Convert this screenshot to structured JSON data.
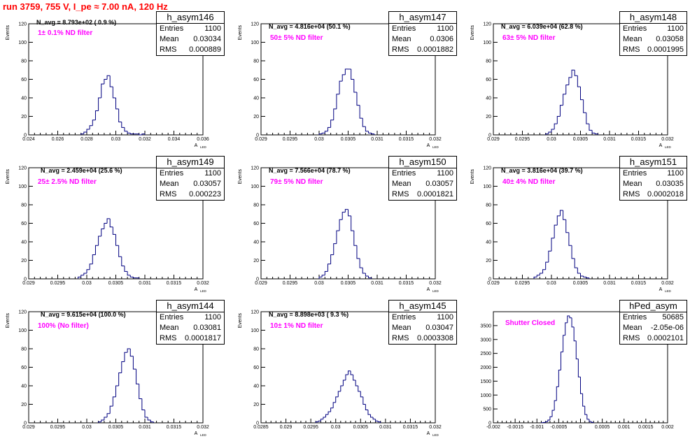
{
  "run_title": "run 3759,   755 V, I_pe ≈ 7.00 nA, 120 Hz",
  "chart_data": [
    {
      "type": "histogram",
      "name": "h_asym146",
      "stats": {
        "entries": "1100",
        "mean": "0.03034",
        "rms": "0.000889"
      },
      "navg": "N_avg = 8.793e+02 ( 0.9 %)",
      "filter": "1± 0.1% ND filter",
      "xlabel": "A",
      "xlabel_sub": "LED",
      "ylabel": "Events",
      "xlim": [
        0.024,
        0.036
      ],
      "ylim": [
        0,
        120
      ],
      "xticks": [
        "0.024",
        "0.026",
        "0.028",
        "0.03",
        "0.032",
        "0.034",
        "0.036"
      ],
      "yticks": [
        "0",
        "20",
        "40",
        "60",
        "80",
        "100",
        "120"
      ],
      "bin_start": 0.0276,
      "bin_width": 0.0002,
      "counts": [
        1,
        3,
        6,
        10,
        16,
        26,
        40,
        55,
        60,
        64,
        52,
        40,
        28,
        14,
        8,
        4,
        2,
        1,
        1,
        1,
        0,
        1
      ]
    },
    {
      "type": "histogram",
      "name": "h_asym147",
      "stats": {
        "entries": "1100",
        "mean": "0.0306",
        "rms": "0.0001882"
      },
      "navg": "N_avg = 4.816e+04 (50.1 %)",
      "filter": "50± 5% ND filter",
      "xlabel": "A",
      "xlabel_sub": "LED",
      "ylabel": "Events",
      "xlim": [
        0.029,
        0.032
      ],
      "ylim": [
        0,
        120
      ],
      "xticks": [
        "0.029",
        "0.0295",
        "0.03",
        "0.0305",
        "0.031",
        "0.0315",
        "0.032"
      ],
      "yticks": [
        "0",
        "20",
        "40",
        "60",
        "80",
        "100",
        "120"
      ],
      "bin_start": 0.03,
      "bin_width": 5e-05,
      "counts": [
        1,
        2,
        4,
        8,
        16,
        28,
        44,
        58,
        65,
        71,
        71,
        60,
        46,
        32,
        18,
        9,
        4,
        2,
        1
      ]
    },
    {
      "type": "histogram",
      "name": "h_asym148",
      "stats": {
        "entries": "1100",
        "mean": "0.03058",
        "rms": "0.0001995"
      },
      "navg": "N_avg = 6.039e+04 (62.8 %)",
      "filter": "63± 5% ND filter",
      "xlabel": "A",
      "xlabel_sub": "LED",
      "ylabel": "Events",
      "xlim": [
        0.029,
        0.032
      ],
      "ylim": [
        0,
        120
      ],
      "xticks": [
        "0.029",
        "0.0295",
        "0.03",
        "0.0305",
        "0.031",
        "0.0315",
        "0.032"
      ],
      "yticks": [
        "0",
        "20",
        "40",
        "60",
        "80",
        "100",
        "120"
      ],
      "bin_start": 0.0299,
      "bin_width": 5e-05,
      "counts": [
        1,
        3,
        6,
        12,
        20,
        32,
        44,
        54,
        62,
        70,
        64,
        52,
        38,
        24,
        12,
        5,
        2,
        1
      ]
    },
    {
      "type": "histogram",
      "name": "h_asym149",
      "stats": {
        "entries": "1100",
        "mean": "0.03057",
        "rms": "0.000223"
      },
      "navg": "N_avg = 2.459e+04 (25.6 %)",
      "filter": "25± 2.5% ND filter",
      "xlabel": "A",
      "xlabel_sub": "LED",
      "ylabel": "Events",
      "xlim": [
        0.029,
        0.032
      ],
      "ylim": [
        0,
        120
      ],
      "xticks": [
        "0.029",
        "0.0295",
        "0.03",
        "0.0305",
        "0.031",
        "0.0315",
        "0.032"
      ],
      "yticks": [
        "0",
        "20",
        "40",
        "60",
        "80",
        "100",
        "120"
      ],
      "bin_start": 0.02985,
      "bin_width": 5e-05,
      "counts": [
        2,
        4,
        6,
        10,
        16,
        26,
        36,
        46,
        54,
        60,
        65,
        56,
        48,
        36,
        24,
        14,
        8,
        4,
        2,
        1,
        1
      ]
    },
    {
      "type": "histogram",
      "name": "h_asym150",
      "stats": {
        "entries": "1100",
        "mean": "0.03057",
        "rms": "0.0001821"
      },
      "navg": "N_avg = 7.566e+04 (78.7 %)",
      "filter": "79± 5% ND filter",
      "xlabel": "A",
      "xlabel_sub": "LED",
      "ylabel": "Events",
      "xlim": [
        0.029,
        0.032
      ],
      "ylim": [
        0,
        120
      ],
      "xticks": [
        "0.029",
        "0.0295",
        "0.03",
        "0.0305",
        "0.031",
        "0.0315",
        "0.032"
      ],
      "yticks": [
        "0",
        "20",
        "40",
        "60",
        "80",
        "100",
        "120"
      ],
      "bin_start": 0.03,
      "bin_width": 5e-05,
      "counts": [
        2,
        4,
        8,
        16,
        26,
        38,
        52,
        64,
        72,
        75,
        68,
        52,
        36,
        22,
        12,
        6,
        3,
        1
      ]
    },
    {
      "type": "histogram",
      "name": "h_asym151",
      "stats": {
        "entries": "1100",
        "mean": "0.03035",
        "rms": "0.0002018"
      },
      "navg": "N_avg = 3.816e+04 (39.7 %)",
      "filter": "40± 4% ND filter",
      "xlabel": "A",
      "xlabel_sub": "LED",
      "ylabel": "Events",
      "xlim": [
        0.029,
        0.032
      ],
      "ylim": [
        0,
        120
      ],
      "xticks": [
        "0.029",
        "0.0295",
        "0.03",
        "0.0305",
        "0.031",
        "0.0315",
        "0.032"
      ],
      "yticks": [
        "0",
        "20",
        "40",
        "60",
        "80",
        "100",
        "120"
      ],
      "bin_start": 0.0297,
      "bin_width": 5e-05,
      "counts": [
        2,
        4,
        6,
        10,
        18,
        30,
        44,
        58,
        68,
        74,
        64,
        50,
        36,
        22,
        12,
        6,
        3,
        2,
        1
      ]
    },
    {
      "type": "histogram",
      "name": "h_asym144",
      "stats": {
        "entries": "1100",
        "mean": "0.03081",
        "rms": "0.0001817"
      },
      "navg": "N_avg = 9.615e+04 (100.0 %)",
      "filter": "100% (No filter)",
      "xlabel": "A",
      "xlabel_sub": "LED",
      "ylabel": "Events",
      "xlim": [
        0.029,
        0.032
      ],
      "ylim": [
        0,
        120
      ],
      "xticks": [
        "0.029",
        "0.0295",
        "0.03",
        "0.0305",
        "0.031",
        "0.0315",
        "0.032"
      ],
      "yticks": [
        "0",
        "20",
        "40",
        "60",
        "80",
        "100",
        "120"
      ],
      "bin_start": 0.0302,
      "bin_width": 5e-05,
      "counts": [
        1,
        3,
        6,
        10,
        18,
        28,
        40,
        54,
        66,
        76,
        80,
        72,
        58,
        42,
        26,
        14,
        6,
        3,
        1
      ]
    },
    {
      "type": "histogram",
      "name": "h_asym145",
      "stats": {
        "entries": "1100",
        "mean": "0.03047",
        "rms": "0.0003308"
      },
      "navg": "N_avg = 8.898e+03 ( 9.3 %)",
      "filter": "10± 1% ND filter",
      "xlabel": "A",
      "xlabel_sub": "LED",
      "ylabel": "Events",
      "xlim": [
        0.0285,
        0.032
      ],
      "ylim": [
        0,
        120
      ],
      "xticks": [
        "0.0285",
        "0.029",
        "0.0295",
        "0.03",
        "0.0305",
        "0.031",
        "0.0315",
        "0.032"
      ],
      "yticks": [
        "0",
        "20",
        "40",
        "60",
        "80",
        "100",
        "120"
      ],
      "bin_start": 0.0296,
      "bin_width": 5e-05,
      "counts": [
        1,
        2,
        4,
        6,
        9,
        12,
        16,
        22,
        28,
        34,
        40,
        46,
        52,
        56,
        52,
        46,
        40,
        34,
        28,
        20,
        14,
        9,
        6,
        4,
        2,
        1
      ]
    },
    {
      "type": "histogram",
      "name": "hPed_asym",
      "stats": {
        "entries": "50685",
        "mean": "-2.05e-06",
        "rms": "0.0002101"
      },
      "navg": "",
      "filter": "Shutter Closed",
      "xlabel": "",
      "xlabel_sub": "",
      "ylabel": "",
      "xlim": [
        -0.002,
        0.002
      ],
      "ylim": [
        0,
        4000
      ],
      "xticks": [
        "-0.002",
        "-0.0015",
        "-0.001",
        "-0.0005",
        "0",
        "0.0005",
        "0.001",
        "0.0015",
        "0.002"
      ],
      "yticks": [
        "0",
        "500",
        "1000",
        "1500",
        "2000",
        "2500",
        "3000",
        "3500"
      ],
      "bin_start": -0.0009,
      "bin_width": 5e-05,
      "counts": [
        5,
        15,
        40,
        100,
        220,
        450,
        800,
        1300,
        1900,
        2550,
        3150,
        3600,
        3850,
        3780,
        3450,
        2950,
        2300,
        1650,
        1050,
        600,
        300,
        130,
        50,
        15
      ]
    }
  ]
}
